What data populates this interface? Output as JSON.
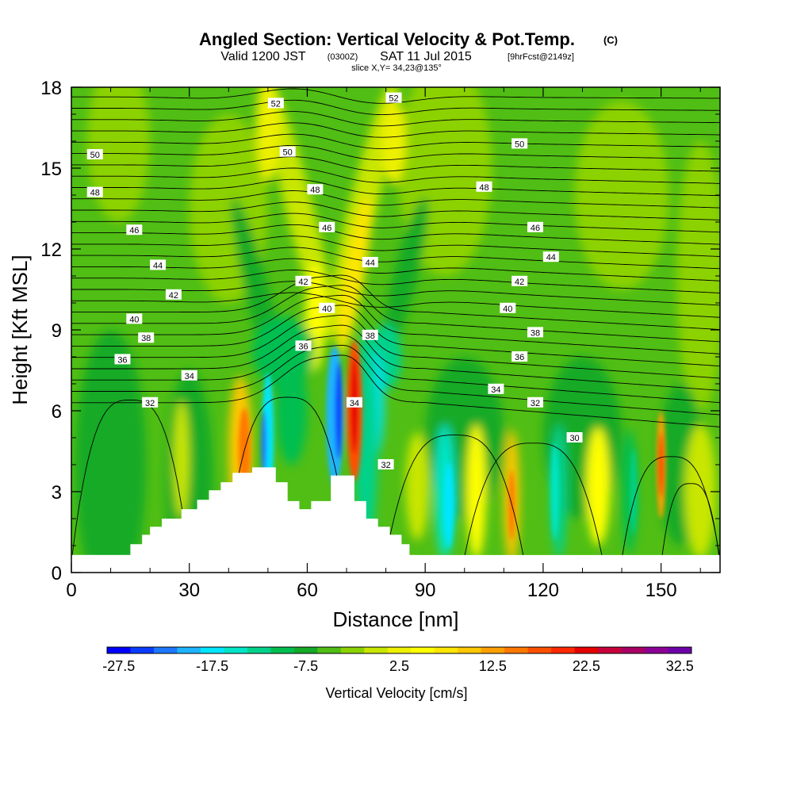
{
  "header": {
    "title": "Angled Section: Vertical Velocity & Pot.Temp.",
    "title_unit": "(C)",
    "subtitle_a": "Valid 1200 JST",
    "subtitle_b": "(0300Z)",
    "subtitle_c": "SAT 11 Jul 2015",
    "subtitle_d": "[9hrFcst@2149z]",
    "slice": "slice X,Y= 34,23@135°"
  },
  "chart_data": {
    "type": "heatmap",
    "title": "Angled Section: Vertical Velocity & Pot.Temp. (C)",
    "xlabel": "Distance [nm]",
    "ylabel": "Height [Kft MSL]",
    "xlim": [
      0,
      165
    ],
    "ylim": [
      0,
      18
    ],
    "x_ticks": [
      "0",
      "30",
      "60",
      "90",
      "120",
      "150"
    ],
    "y_ticks": [
      "0",
      "3",
      "6",
      "9",
      "12",
      "15",
      "18"
    ],
    "fill_variable": "Vertical Velocity [cm/s]",
    "colorbar": {
      "label": "Vertical Velocity [cm/s]",
      "tick_labels": [
        "-27.5",
        "-17.5",
        "-7.5",
        "2.5",
        "12.5",
        "22.5",
        "32.5"
      ],
      "colors": [
        "#0000ff",
        "#0a3cff",
        "#1e78ff",
        "#1eb4ff",
        "#00e6ff",
        "#00e6c8",
        "#00d28c",
        "#00be50",
        "#14aa28",
        "#50be14",
        "#8cd200",
        "#c8e600",
        "#eef000",
        "#ffff00",
        "#ffe600",
        "#ffc800",
        "#ffa000",
        "#ff7800",
        "#ff5000",
        "#ff2800",
        "#e60000",
        "#c8003c",
        "#aa0064",
        "#8c0096",
        "#6e00aa"
      ]
    },
    "contour_variable": "Potential Temperature (C)",
    "terrain": [
      [
        10,
        0.65
      ],
      [
        15,
        0.65
      ],
      [
        15,
        1.05
      ],
      [
        18,
        1.05
      ],
      [
        18,
        1.4
      ],
      [
        20,
        1.4
      ],
      [
        20,
        1.7
      ],
      [
        23,
        1.7
      ],
      [
        23,
        2.0
      ],
      [
        28,
        2.0
      ],
      [
        28,
        2.35
      ],
      [
        32,
        2.35
      ],
      [
        32,
        2.7
      ],
      [
        35,
        2.7
      ],
      [
        35,
        3.05
      ],
      [
        38,
        3.05
      ],
      [
        38,
        3.35
      ],
      [
        41,
        3.35
      ],
      [
        41,
        3.7
      ],
      [
        46,
        3.7
      ],
      [
        46,
        3.9
      ],
      [
        52,
        3.9
      ],
      [
        52,
        3.35
      ],
      [
        55,
        3.35
      ],
      [
        55,
        2.65
      ],
      [
        58,
        2.65
      ],
      [
        58,
        2.35
      ],
      [
        61,
        2.35
      ],
      [
        61,
        2.65
      ],
      [
        66,
        2.65
      ],
      [
        66,
        3.6
      ],
      [
        72,
        3.6
      ],
      [
        72,
        2.65
      ],
      [
        75,
        2.65
      ],
      [
        75,
        2.0
      ],
      [
        78,
        2.0
      ],
      [
        78,
        1.7
      ],
      [
        81,
        1.7
      ],
      [
        81,
        1.4
      ],
      [
        84,
        1.4
      ],
      [
        84,
        1.05
      ],
      [
        86,
        1.05
      ],
      [
        86,
        0.65
      ],
      [
        88,
        0.65
      ]
    ],
    "contour_labels": [
      {
        "value": "52",
        "x": 52,
        "y": 17.4
      },
      {
        "value": "52",
        "x": 82,
        "y": 17.6
      },
      {
        "value": "50",
        "x": 6,
        "y": 15.5
      },
      {
        "value": "50",
        "x": 55,
        "y": 15.6
      },
      {
        "value": "50",
        "x": 114,
        "y": 15.9
      },
      {
        "value": "48",
        "x": 6,
        "y": 14.1
      },
      {
        "value": "48",
        "x": 62,
        "y": 14.2
      },
      {
        "value": "48",
        "x": 105,
        "y": 14.3
      },
      {
        "value": "46",
        "x": 16,
        "y": 12.7
      },
      {
        "value": "46",
        "x": 65,
        "y": 12.8
      },
      {
        "value": "46",
        "x": 118,
        "y": 12.8
      },
      {
        "value": "44",
        "x": 22,
        "y": 11.4
      },
      {
        "value": "44",
        "x": 76,
        "y": 11.5
      },
      {
        "value": "44",
        "x": 122,
        "y": 11.7
      },
      {
        "value": "42",
        "x": 26,
        "y": 10.3
      },
      {
        "value": "42",
        "x": 59,
        "y": 10.8
      },
      {
        "value": "42",
        "x": 114,
        "y": 10.8
      },
      {
        "value": "40",
        "x": 16,
        "y": 9.4
      },
      {
        "value": "40",
        "x": 65,
        "y": 9.8
      },
      {
        "value": "40",
        "x": 111,
        "y": 9.8
      },
      {
        "value": "38",
        "x": 19,
        "y": 8.7
      },
      {
        "value": "38",
        "x": 76,
        "y": 8.8
      },
      {
        "value": "38",
        "x": 118,
        "y": 8.9
      },
      {
        "value": "36",
        "x": 13,
        "y": 7.9
      },
      {
        "value": "36",
        "x": 59,
        "y": 8.4
      },
      {
        "value": "36",
        "x": 114,
        "y": 8.0
      },
      {
        "value": "34",
        "x": 30,
        "y": 7.3
      },
      {
        "value": "34",
        "x": 72,
        "y": 6.3
      },
      {
        "value": "34",
        "x": 108,
        "y": 6.8
      },
      {
        "value": "32",
        "x": 20,
        "y": 6.3
      },
      {
        "value": "32",
        "x": 80,
        "y": 4.0
      },
      {
        "value": "32",
        "x": 118,
        "y": 6.3
      },
      {
        "value": "30",
        "x": 128,
        "y": 5.0
      }
    ]
  }
}
